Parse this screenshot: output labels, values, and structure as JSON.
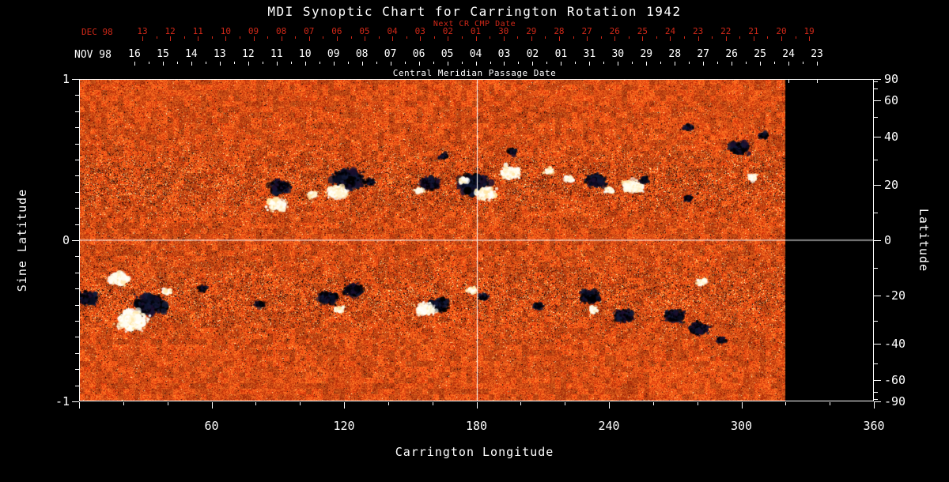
{
  "title": "MDI Synoptic Chart for Carrington Rotation 1942",
  "top_axis": {
    "next_cr_label": "Next CR CMP Date",
    "dec_label": "DEC 98",
    "dec_dates": [
      "13",
      "12",
      "11",
      "10",
      "09",
      "08",
      "07",
      "06",
      "05",
      "04",
      "03",
      "02",
      "01",
      "30",
      "29",
      "28",
      "27",
      "26",
      "25",
      "24",
      "23",
      "22",
      "21",
      "20",
      "19"
    ],
    "nov_label": "NOV 98",
    "nov_dates": [
      "16",
      "15",
      "14",
      "13",
      "12",
      "11",
      "10",
      "09",
      "08",
      "07",
      "06",
      "05",
      "04",
      "03",
      "02",
      "01",
      "31",
      "30",
      "29",
      "28",
      "27",
      "26",
      "25",
      "24",
      "23"
    ],
    "cmp_label": "Central Meridian Passage Date"
  },
  "colors": {
    "background": "#000000",
    "text": "#ffffff",
    "accent_red": "#d02818",
    "magnetogram_base": "#e8500f",
    "magnetogram_dark": "#10060a",
    "magnetogram_bright": "#fff0d0"
  },
  "chart_data": {
    "type": "heatmap",
    "title": "MDI Synoptic Chart for Carrington Rotation 1942",
    "xlabel": "Carrington Longitude",
    "ylabel_left": "Sine Latitude",
    "ylabel_right": "Latitude",
    "xlim": [
      0,
      360
    ],
    "ylim_sine": [
      -1,
      1
    ],
    "x_tick_degrees": [
      60,
      120,
      180,
      240,
      300,
      360
    ],
    "x_tick_labels": [
      "60",
      "120",
      "180",
      "240",
      "300",
      "360"
    ],
    "x_minor_step_deg": 20,
    "left_tick_values": [
      1,
      0,
      -1
    ],
    "left_tick_labels": [
      "1",
      "0",
      "-1"
    ],
    "left_minor_step_sine": 0.1,
    "right_tick_degrees": [
      90,
      60,
      40,
      20,
      0,
      -20,
      -40,
      -60,
      -90
    ],
    "right_tick_labels": [
      "90",
      "60",
      "40",
      "20",
      "0",
      "-20",
      "-40",
      "-60",
      "-90"
    ],
    "right_minor_step_deg": 10,
    "data_longitude_coverage": [
      0,
      320
    ],
    "grid_lines": {
      "horizontal_sine_lat": 0,
      "vertical_longitude": 180
    },
    "legend": "none",
    "active_regions_note": "solar magnetogram; entries are [carrington_lon_deg, sine_latitude, polarity(-1 dark/+1 bright), size]",
    "active_regions": [
      [
        91,
        0.33,
        -1,
        2
      ],
      [
        90,
        0.22,
        1,
        2
      ],
      [
        106,
        0.28,
        1,
        1
      ],
      [
        122,
        0.38,
        -1,
        3
      ],
      [
        117,
        0.3,
        1,
        2
      ],
      [
        132,
        0.36,
        -1,
        1
      ],
      [
        159,
        0.35,
        -1,
        2
      ],
      [
        154,
        0.31,
        1,
        1
      ],
      [
        165,
        0.52,
        -1,
        1
      ],
      [
        196,
        0.55,
        -1,
        1
      ],
      [
        179,
        0.34,
        -1,
        3
      ],
      [
        174,
        0.37,
        1,
        1
      ],
      [
        184,
        0.29,
        1,
        2
      ],
      [
        195,
        0.42,
        1,
        2
      ],
      [
        213,
        0.43,
        1,
        1
      ],
      [
        222,
        0.38,
        1,
        1
      ],
      [
        234,
        0.37,
        -1,
        2
      ],
      [
        240,
        0.31,
        1,
        1
      ],
      [
        251,
        0.33,
        1,
        2
      ],
      [
        256,
        0.37,
        -1,
        1
      ],
      [
        276,
        0.26,
        -1,
        1
      ],
      [
        299,
        0.57,
        -1,
        2
      ],
      [
        305,
        0.39,
        1,
        1
      ],
      [
        276,
        0.7,
        -1,
        1
      ],
      [
        310,
        0.65,
        -1,
        1
      ],
      [
        4,
        -0.36,
        -1,
        2
      ],
      [
        18,
        -0.24,
        1,
        2
      ],
      [
        32,
        -0.4,
        -1,
        3
      ],
      [
        24,
        -0.5,
        1,
        3
      ],
      [
        40,
        -0.32,
        1,
        1
      ],
      [
        56,
        -0.3,
        -1,
        1
      ],
      [
        82,
        -0.4,
        -1,
        1
      ],
      [
        113,
        -0.36,
        -1,
        2
      ],
      [
        124,
        -0.31,
        -1,
        2
      ],
      [
        118,
        -0.43,
        1,
        1
      ],
      [
        163,
        -0.4,
        -1,
        2
      ],
      [
        157,
        -0.43,
        1,
        2
      ],
      [
        183,
        -0.35,
        -1,
        1
      ],
      [
        178,
        -0.31,
        1,
        1
      ],
      [
        208,
        -0.41,
        -1,
        1
      ],
      [
        231,
        -0.35,
        -1,
        2
      ],
      [
        233,
        -0.43,
        1,
        1
      ],
      [
        247,
        -0.47,
        -1,
        2
      ],
      [
        270,
        -0.47,
        -1,
        2
      ],
      [
        281,
        -0.55,
        -1,
        2
      ],
      [
        291,
        -0.62,
        -1,
        1
      ],
      [
        282,
        -0.26,
        1,
        1
      ]
    ]
  }
}
